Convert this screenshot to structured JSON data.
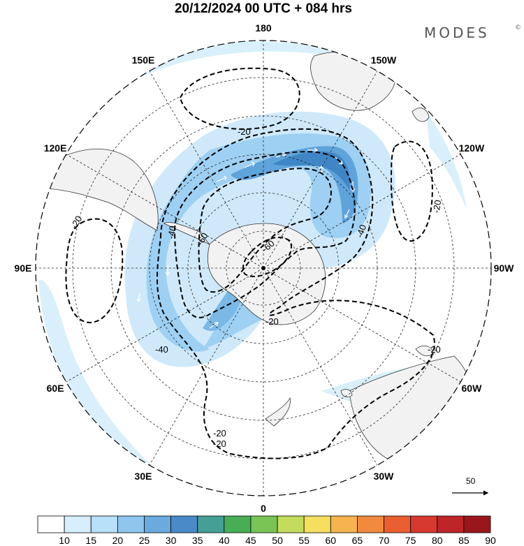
{
  "title": "20/12/2024  00 UTC  + 084 hrs",
  "brand": "MODES",
  "brand_mark": "©",
  "longitude_labels": [
    {
      "text": "0",
      "lon": 0
    },
    {
      "text": "30E",
      "lon": 30
    },
    {
      "text": "60E",
      "lon": 60
    },
    {
      "text": "90E",
      "lon": 90
    },
    {
      "text": "120E",
      "lon": 120
    },
    {
      "text": "150E",
      "lon": 150
    },
    {
      "text": "180",
      "lon": 180
    },
    {
      "text": "150W",
      "lon": -150
    },
    {
      "text": "120W",
      "lon": -120
    },
    {
      "text": "90W",
      "lon": -90
    },
    {
      "text": "60W",
      "lon": -60
    },
    {
      "text": "30W",
      "lon": -30
    }
  ],
  "contour_labels": [
    "-20",
    "-20",
    "-20",
    "-20",
    "-20",
    "-20",
    "-40",
    "-40",
    "-40",
    "-60",
    "-60",
    "-20"
  ],
  "vector_reference": {
    "value": "50"
  },
  "colorbar": {
    "ticks": [
      "10",
      "15",
      "20",
      "25",
      "30",
      "35",
      "40",
      "45",
      "50",
      "55",
      "60",
      "65",
      "70",
      "75",
      "80",
      "85",
      "90"
    ],
    "colors": [
      "#ffffff",
      "#d7effd",
      "#b8e0f8",
      "#8ec6ee",
      "#6aaadf",
      "#4a8ac9",
      "#459f96",
      "#48ae55",
      "#79c455",
      "#c3dc5c",
      "#f5df5f",
      "#f6b34f",
      "#f18a3c",
      "#ea5f32",
      "#d8392f",
      "#bf2428",
      "#99171c"
    ]
  },
  "colors": {
    "land": "#f2f2f2",
    "wind_light": "#cfe9fb",
    "wind_mid": "#9dd0f3",
    "wind_strong": "#5fa3db",
    "wind_core": "#3f86c6"
  }
}
